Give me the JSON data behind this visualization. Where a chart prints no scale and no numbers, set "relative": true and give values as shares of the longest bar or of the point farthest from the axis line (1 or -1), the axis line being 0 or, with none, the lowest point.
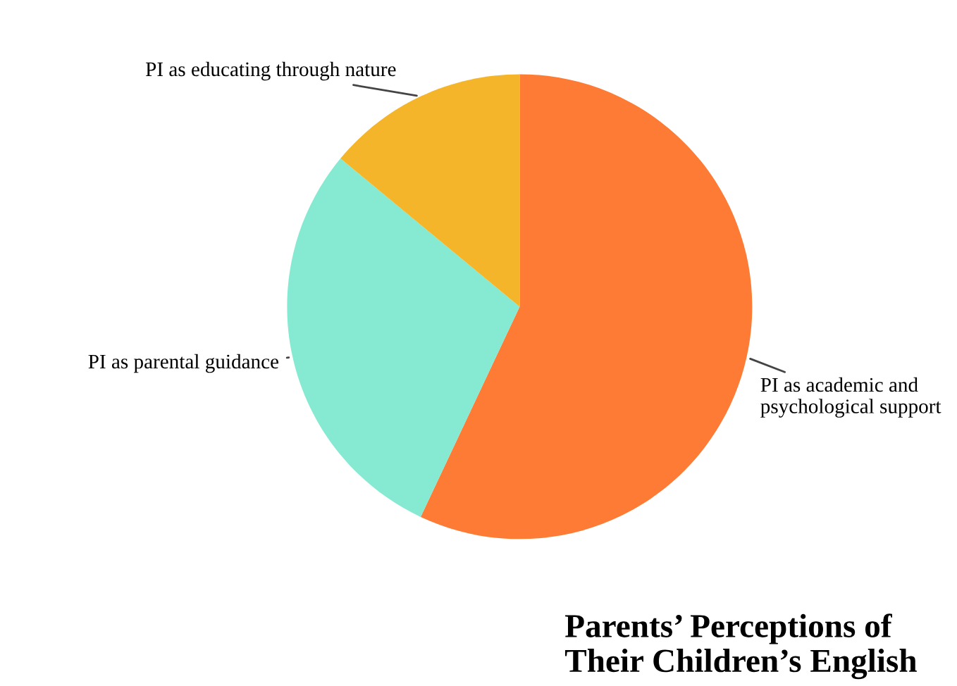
{
  "chart_data": {
    "type": "pie",
    "title": "Parents’ Perceptions of Their Children’s English",
    "categories": [
      "PI as academic and psychological support",
      "PI as parental guidance",
      "PI as educating through nature"
    ],
    "values": [
      57,
      29,
      14
    ],
    "colors": [
      "#fd7b35",
      "#85ead1",
      "#f4b52a"
    ],
    "relative": true
  }
}
